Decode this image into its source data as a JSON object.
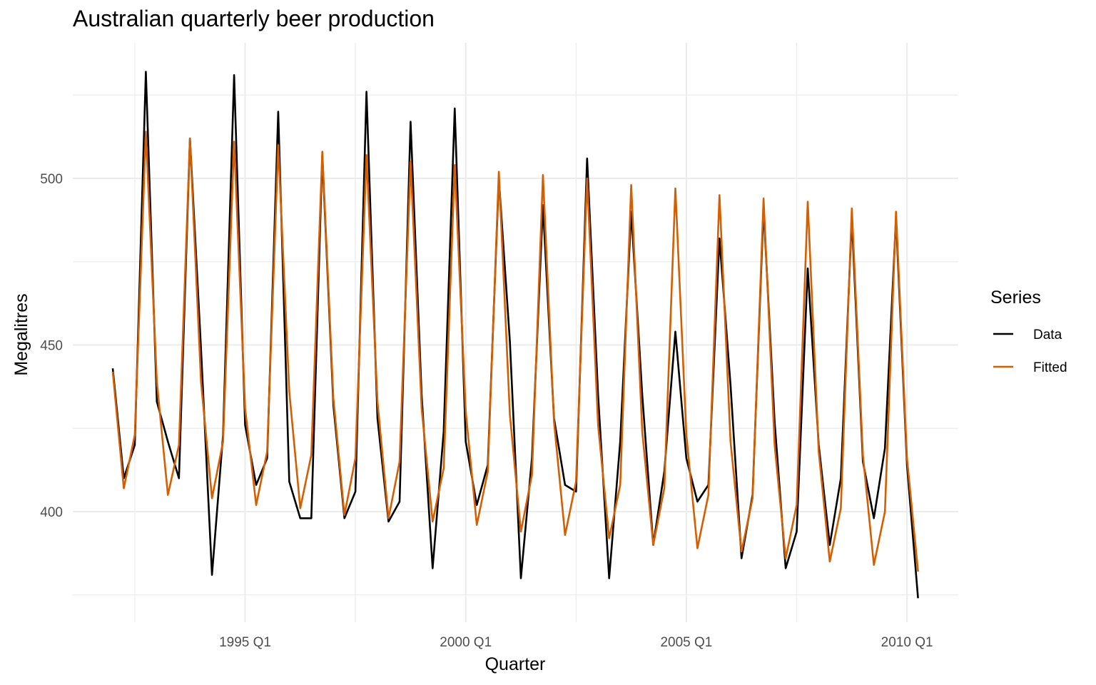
{
  "chart_data": {
    "type": "line",
    "title": "Australian quarterly beer production",
    "xlabel": "Quarter",
    "ylabel": "Megalitres",
    "x_start": "1992 Q1",
    "x_end": "2010 Q2",
    "x_ticks": [
      "1995 Q1",
      "2000 Q1",
      "2005 Q1",
      "2010 Q1"
    ],
    "y_ticks": [
      400,
      450,
      500
    ],
    "ylim": [
      370,
      537
    ],
    "grid": true,
    "legend": {
      "title": "Series",
      "position": "right"
    },
    "series": [
      {
        "name": "Data",
        "color": "#000000",
        "values": [
          443,
          410,
          420,
          532,
          433,
          421,
          410,
          512,
          449,
          381,
          423,
          531,
          426,
          408,
          416,
          520,
          409,
          398,
          398,
          507,
          432,
          398,
          406,
          526,
          428,
          397,
          403,
          517,
          435,
          383,
          424,
          521,
          421,
          402,
          414,
          500,
          451,
          380,
          416,
          492,
          428,
          408,
          406,
          506,
          435,
          380,
          421,
          490,
          435,
          390,
          412,
          454,
          416,
          403,
          408,
          482,
          438,
          386,
          405,
          491,
          427,
          383,
          394,
          473,
          420,
          390,
          410,
          488,
          415,
          398,
          419,
          488,
          414,
          374
        ]
      },
      {
        "name": "Fitted",
        "color": "#d55e00",
        "values": [
          442,
          407,
          423,
          514,
          439,
          405,
          420,
          512,
          439,
          404,
          421,
          511,
          431,
          402,
          418,
          510,
          436,
          401,
          417,
          508,
          434,
          399,
          416,
          507,
          433,
          398,
          415,
          505,
          431,
          397,
          413,
          504,
          430,
          396,
          412,
          502,
          429,
          394,
          411,
          501,
          427,
          393,
          409,
          500,
          426,
          392,
          408,
          498,
          424,
          390,
          407,
          497,
          423,
          389,
          405,
          495,
          421,
          388,
          404,
          494,
          420,
          386,
          402,
          493,
          418,
          385,
          401,
          491,
          417,
          384,
          400,
          490,
          416,
          382
        ]
      }
    ]
  }
}
